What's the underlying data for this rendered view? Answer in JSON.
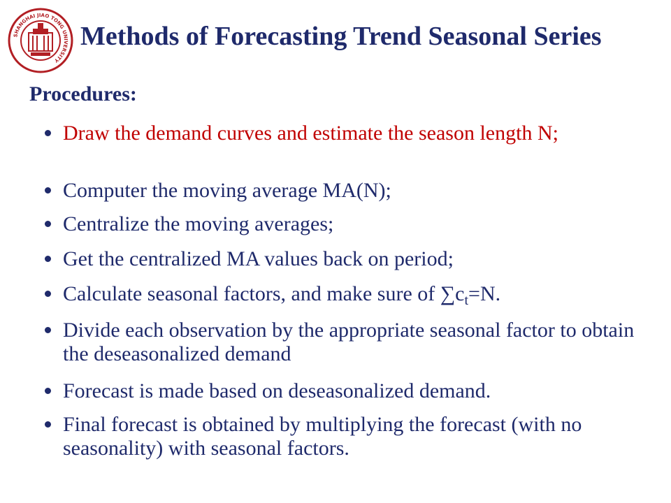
{
  "logo": {
    "icon": "sjtu-seal-icon",
    "ring_text": "SHANGHAI JIAO TONG UNIVERSITY",
    "chinese_text": "上海交通大學",
    "color": "#b21f24"
  },
  "slide": {
    "title": "Methods of Forecasting Trend Seasonal Series",
    "heading": "Procedures:",
    "colors": {
      "title": "#1f2a6b",
      "body": "#1f2a6b",
      "highlight": "#c00000"
    },
    "bullets": [
      {
        "text": "Draw the demand curves and estimate the season length N;",
        "highlight": true
      },
      {
        "text": "Computer the moving average MA(N);",
        "highlight": false
      },
      {
        "text": "Centralize the moving averages;",
        "highlight": false
      },
      {
        "text": "Get the centralized MA values back on period;",
        "highlight": false
      },
      {
        "text_pre": "Calculate seasonal factors, and make sure of ∑c",
        "text_sub": "t",
        "text_post": "=N.",
        "highlight": false
      },
      {
        "text": "Divide each observation by the appropriate seasonal factor to obtain the deseasonalized demand",
        "highlight": false
      },
      {
        "text": "Forecast is made based on deseasonalized demand.",
        "highlight": false
      },
      {
        "text": "Final forecast is obtained by multiplying the forecast (with no seasonality) with seasonal factors.",
        "highlight": false
      }
    ]
  }
}
